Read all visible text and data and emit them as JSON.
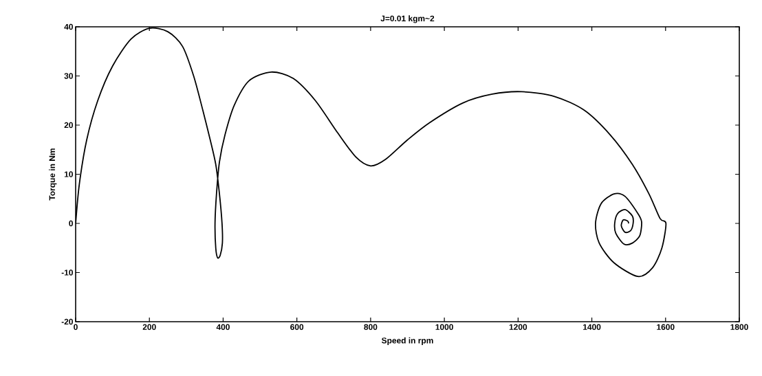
{
  "chart_data": {
    "type": "line",
    "title": "J=0.01 kgm~2",
    "xlabel": "Speed in rpm",
    "ylabel": "Torque in Nm",
    "xlim": [
      0,
      1800
    ],
    "ylim": [
      -20,
      40
    ],
    "xticks": [
      0,
      200,
      400,
      600,
      800,
      1000,
      1200,
      1400,
      1600,
      1800
    ],
    "yticks": [
      -20,
      -10,
      0,
      10,
      20,
      30,
      40
    ],
    "grid": false,
    "series": [
      {
        "color": "#000000",
        "x": [
          0,
          10,
          30,
          60,
          100,
          150,
          200,
          250,
          290,
          320,
          345,
          365,
          380,
          390,
          397,
          398,
          392,
          385,
          380,
          378,
          382,
          390,
          405,
          430,
          470,
          530,
          590,
          650,
          710,
          760,
          800,
          840,
          900,
          960,
          1050,
          1130,
          1210,
          1300,
          1380,
          1450,
          1510,
          1555,
          1585,
          1601,
          1590,
          1565,
          1525,
          1460,
          1420,
          1410,
          1425,
          1460,
          1490,
          1525,
          1535,
          1530,
          1510,
          1487,
          1465,
          1462,
          1470,
          1490,
          1510,
          1512,
          1505,
          1490,
          1480,
          1485,
          1497,
          1500
        ],
        "values": [
          0,
          8,
          17,
          25,
          32,
          37.5,
          39.7,
          39,
          36,
          30,
          23,
          17,
          12,
          6,
          0,
          -4,
          -6.5,
          -7,
          -5,
          0,
          6,
          12.5,
          18,
          24,
          29,
          30.8,
          29.5,
          25,
          18.5,
          13.5,
          11.7,
          13,
          17,
          20.5,
          24.5,
          26.3,
          26.8,
          25.8,
          23,
          18,
          12,
          6,
          1,
          0,
          -5,
          -9,
          -10.8,
          -8,
          -4,
          0,
          4,
          6,
          5.5,
          2,
          0.3,
          -2.5,
          -4,
          -4.2,
          -2,
          0,
          2,
          2.8,
          1.5,
          0,
          -1.5,
          -1.8,
          -0.5,
          0.7,
          0.5,
          0
        ]
      }
    ]
  }
}
